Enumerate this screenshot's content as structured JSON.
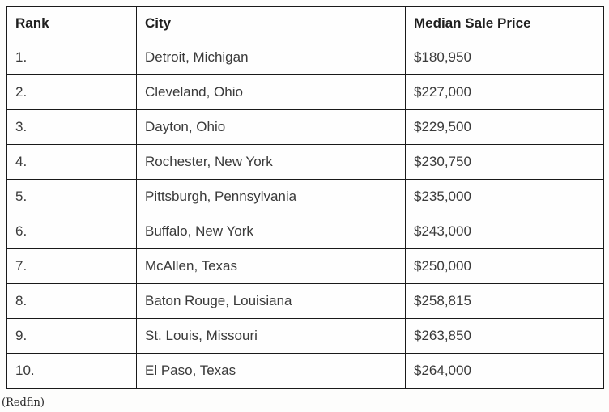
{
  "table": {
    "columns": [
      "Rank",
      "City",
      "Median Sale Price"
    ],
    "rows": [
      {
        "rank": "1.",
        "city": "Detroit, Michigan",
        "price": "$180,950"
      },
      {
        "rank": "2.",
        "city": "Cleveland, Ohio",
        "price": "$227,000"
      },
      {
        "rank": "3.",
        "city": "Dayton, Ohio",
        "price": "$229,500"
      },
      {
        "rank": "4.",
        "city": "Rochester, New York",
        "price": "$230,750"
      },
      {
        "rank": "5.",
        "city": "Pittsburgh, Pennsylvania",
        "price": "$235,000"
      },
      {
        "rank": "6.",
        "city": "Buffalo, New York",
        "price": "$243,000"
      },
      {
        "rank": "7.",
        "city": "McAllen, Texas",
        "price": "$250,000"
      },
      {
        "rank": "8.",
        "city": "Baton Rouge, Louisiana",
        "price": "$258,815"
      },
      {
        "rank": "9.",
        "city": "St. Louis, Missouri",
        "price": "$263,850"
      },
      {
        "rank": "10.",
        "city": "El Paso, Texas",
        "price": "$264,000"
      }
    ]
  },
  "caption": "(Redfin)",
  "colors": {
    "border": "#1a1a1a",
    "header_text": "#1f1f1f",
    "body_text": "#3a3a3a",
    "background": "#fdfdfc"
  },
  "chart_data": {
    "type": "table",
    "title": "",
    "columns": [
      "Rank",
      "City",
      "Median Sale Price"
    ],
    "rows": [
      [
        "1.",
        "Detroit, Michigan",
        "$180,950"
      ],
      [
        "2.",
        "Cleveland, Ohio",
        "$227,000"
      ],
      [
        "3.",
        "Dayton, Ohio",
        "$229,500"
      ],
      [
        "4.",
        "Rochester, New York",
        "$230,750"
      ],
      [
        "5.",
        "Pittsburgh, Pennsylvania",
        "$235,000"
      ],
      [
        "6.",
        "Buffalo, New York",
        "$243,000"
      ],
      [
        "7.",
        "McAllen, Texas",
        "$250,000"
      ],
      [
        "8.",
        "Baton Rouge, Louisiana",
        "$258,815"
      ],
      [
        "9.",
        "St. Louis, Missouri",
        "$263,850"
      ],
      [
        "10.",
        "El Paso, Texas",
        "$264,000"
      ]
    ],
    "values_numeric": [
      180950,
      227000,
      229500,
      230750,
      235000,
      243000,
      250000,
      258815,
      263850,
      264000
    ],
    "source_attribution": "(Redfin)"
  }
}
